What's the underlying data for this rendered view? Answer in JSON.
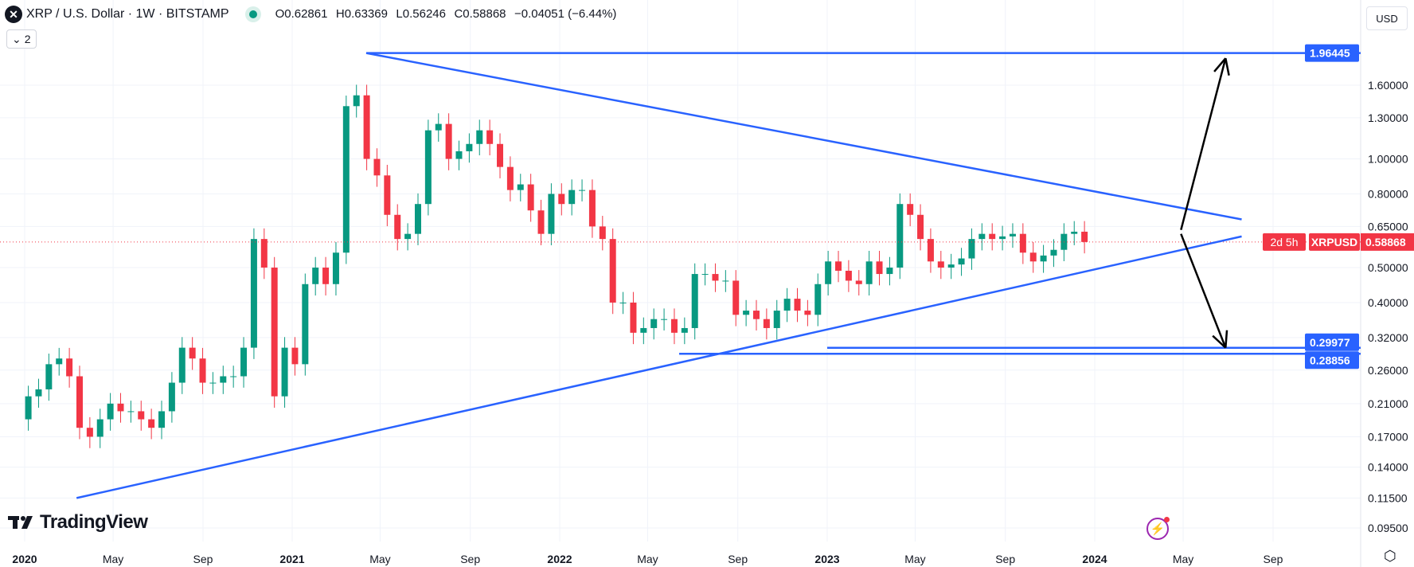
{
  "header": {
    "symbol_icon": "xrp-logo",
    "title": "XRP / U.S. Dollar · 1W · BITSTAMP",
    "market_status": "open",
    "ohlc": {
      "open": "O0.62861",
      "high": "H0.63369",
      "low": "L0.56246",
      "close": "C0.58868",
      "change": "−0.04051 (−6.44%)"
    },
    "indicators_toggle": "2",
    "currency": "USD"
  },
  "branding": {
    "logo": "TradingView"
  },
  "price_label": {
    "symbol": "XRPUSD",
    "price": "0.58868",
    "countdown": "2d 5h"
  },
  "colors": {
    "up": "#089981",
    "down": "#f23645",
    "trendline": "#2962ff",
    "arrow": "#000000",
    "last_price": "#f23645"
  },
  "chart_data": {
    "type": "candlestick",
    "scale": "log",
    "ylim": [
      0.087,
      2.75
    ],
    "xlim": [
      "2020-01-01",
      "2024-12-31"
    ],
    "grid": true,
    "y_ticks": [
      "1.60000",
      "1.30000",
      "1.00000",
      "0.80000",
      "0.65000",
      "0.50000",
      "0.40000",
      "0.32000",
      "0.26000",
      "0.21000",
      "0.17000",
      "0.14000",
      "0.11500",
      "0.09500"
    ],
    "x_ticks": [
      {
        "label": "2020",
        "date": "2020-01-01",
        "bold": true
      },
      {
        "label": "May",
        "date": "2020-05-01"
      },
      {
        "label": "Sep",
        "date": "2020-09-01"
      },
      {
        "label": "2021",
        "date": "2021-01-01",
        "bold": true
      },
      {
        "label": "May",
        "date": "2021-05-01"
      },
      {
        "label": "Sep",
        "date": "2021-09-01"
      },
      {
        "label": "2022",
        "date": "2022-01-01",
        "bold": true
      },
      {
        "label": "May",
        "date": "2022-05-01"
      },
      {
        "label": "Sep",
        "date": "2022-09-01"
      },
      {
        "label": "2023",
        "date": "2023-01-01",
        "bold": true
      },
      {
        "label": "May",
        "date": "2023-05-01"
      },
      {
        "label": "Sep",
        "date": "2023-09-01"
      },
      {
        "label": "2024",
        "date": "2024-01-01",
        "bold": true
      },
      {
        "label": "May",
        "date": "2024-05-01"
      },
      {
        "label": "Sep",
        "date": "2024-09-01"
      }
    ],
    "candle_start": "2020-01-06",
    "candle_interval_weeks": 2,
    "first_open": 0.19,
    "closes": [
      0.22,
      0.23,
      0.27,
      0.28,
      0.25,
      0.18,
      0.17,
      0.19,
      0.21,
      0.2,
      0.2,
      0.19,
      0.18,
      0.2,
      0.24,
      0.3,
      0.28,
      0.24,
      0.24,
      0.25,
      0.25,
      0.3,
      0.6,
      0.5,
      0.22,
      0.3,
      0.27,
      0.45,
      0.5,
      0.45,
      0.55,
      1.4,
      1.5,
      1.0,
      0.9,
      0.7,
      0.6,
      0.62,
      0.75,
      1.2,
      1.25,
      1.0,
      1.05,
      1.1,
      1.2,
      1.1,
      0.95,
      0.82,
      0.85,
      0.72,
      0.62,
      0.8,
      0.75,
      0.82,
      0.82,
      0.65,
      0.6,
      0.4,
      0.4,
      0.33,
      0.34,
      0.36,
      0.36,
      0.33,
      0.34,
      0.48,
      0.48,
      0.46,
      0.46,
      0.37,
      0.38,
      0.36,
      0.34,
      0.38,
      0.41,
      0.38,
      0.37,
      0.45,
      0.52,
      0.49,
      0.46,
      0.45,
      0.52,
      0.48,
      0.5,
      0.75,
      0.7,
      0.6,
      0.52,
      0.5,
      0.51,
      0.53,
      0.6,
      0.62,
      0.6,
      0.61,
      0.62,
      0.55,
      0.52,
      0.54,
      0.56,
      0.62,
      0.62861,
      0.58868
    ],
    "last_price": 0.58868,
    "horizontal_levels": [
      {
        "label": "1.96445",
        "value": 1.96445,
        "from": "2021-04-12"
      },
      {
        "label": "0.29977",
        "value": 0.29977,
        "from": "2023-01-01"
      },
      {
        "label": "0.28856",
        "value": 0.28856,
        "from": "2022-06-13"
      }
    ],
    "trendlines": [
      {
        "from": {
          "date": "2021-04-12",
          "value": 1.96445
        },
        "to": {
          "date": "2024-07-20",
          "value": 0.68
        }
      },
      {
        "from": {
          "date": "2020-03-12",
          "value": 0.115
        },
        "to": {
          "date": "2024-07-20",
          "value": 0.61
        }
      }
    ],
    "arrows": [
      {
        "from": {
          "date": "2024-04-28",
          "value": 0.636
        },
        "to": {
          "date": "2024-06-28",
          "value": 1.9
        }
      },
      {
        "from": {
          "date": "2024-04-28",
          "value": 0.62
        },
        "to": {
          "date": "2024-06-28",
          "value": 0.3
        }
      }
    ]
  }
}
